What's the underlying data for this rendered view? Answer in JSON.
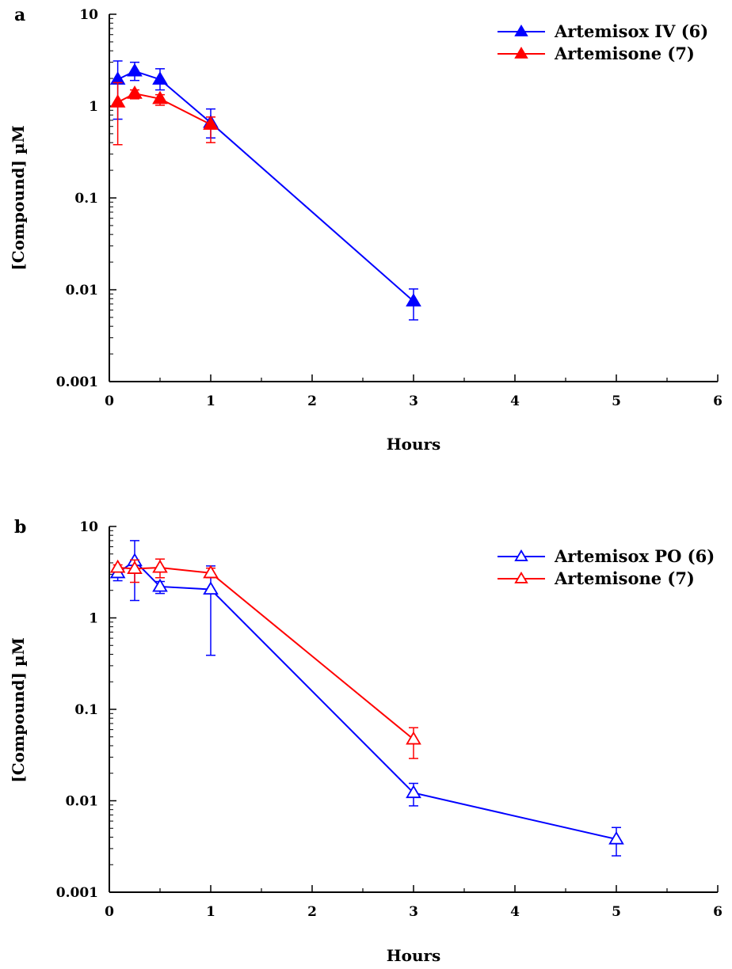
{
  "chart_data": [
    {
      "panel_label": "a",
      "type": "line",
      "xlabel": "Hours",
      "ylabel": "[Compound] µM",
      "yscale": "log",
      "xlim": [
        0,
        6
      ],
      "ylim": [
        0.001,
        10
      ],
      "xticks": [
        "0",
        "1",
        "2",
        "3",
        "4",
        "5",
        "6"
      ],
      "yticks": [
        "10",
        "1",
        "0.1",
        "0.01",
        "0.001"
      ],
      "legend_position": "top-right",
      "grid": false,
      "marker": "filled-triangle",
      "series": [
        {
          "name": "Artemisox IV (6)",
          "color": "#0000ff",
          "x": [
            0.083,
            0.25,
            0.5,
            1,
            3
          ],
          "y": [
            1.95,
            2.4,
            1.95,
            0.66,
            0.0075
          ],
          "err_low": [
            0.72,
            1.9,
            1.5,
            0.45,
            0.0047
          ],
          "err_high": [
            3.1,
            3.0,
            2.55,
            0.93,
            0.0102
          ]
        },
        {
          "name": "Artemisone (7)",
          "color": "#ff0000",
          "x": [
            0.083,
            0.25,
            0.5,
            1
          ],
          "y": [
            1.1,
            1.37,
            1.2,
            0.63
          ],
          "err_low": [
            0.38,
            1.2,
            1.02,
            0.4
          ],
          "err_high": [
            1.8,
            1.5,
            1.33,
            0.76
          ]
        }
      ]
    },
    {
      "panel_label": "b",
      "type": "line",
      "xlabel": "Hours",
      "ylabel": "[Compound] µM",
      "yscale": "log",
      "xlim": [
        0,
        6
      ],
      "ylim": [
        0.001,
        10
      ],
      "xticks": [
        "0",
        "1",
        "2",
        "3",
        "4",
        "5",
        "6"
      ],
      "yticks": [
        "10",
        "1",
        "0.1",
        "0.01",
        "0.001"
      ],
      "legend_position": "top-right",
      "grid": false,
      "marker": "open-triangle",
      "series": [
        {
          "name": "Artemisox PO (6)",
          "color": "#0000ff",
          "x": [
            0.083,
            0.25,
            0.5,
            1,
            3,
            5
          ],
          "y": [
            3.1,
            4.2,
            2.2,
            2.05,
            0.0122,
            0.0038
          ],
          "err_low": [
            2.55,
            1.55,
            1.85,
            0.39,
            0.0088,
            0.0025
          ],
          "err_high": [
            3.5,
            7.0,
            2.5,
            3.7,
            0.0155,
            0.0051
          ]
        },
        {
          "name": "Artemisone (7)",
          "color": "#ff0000",
          "x": [
            0.083,
            0.25,
            0.5,
            1,
            3
          ],
          "y": [
            3.55,
            3.45,
            3.55,
            3.1,
            0.047
          ],
          "err_low": [
            3.35,
            2.45,
            2.75,
            2.75,
            0.029
          ],
          "err_high": [
            3.8,
            4.3,
            4.4,
            3.5,
            0.063
          ]
        }
      ]
    }
  ]
}
